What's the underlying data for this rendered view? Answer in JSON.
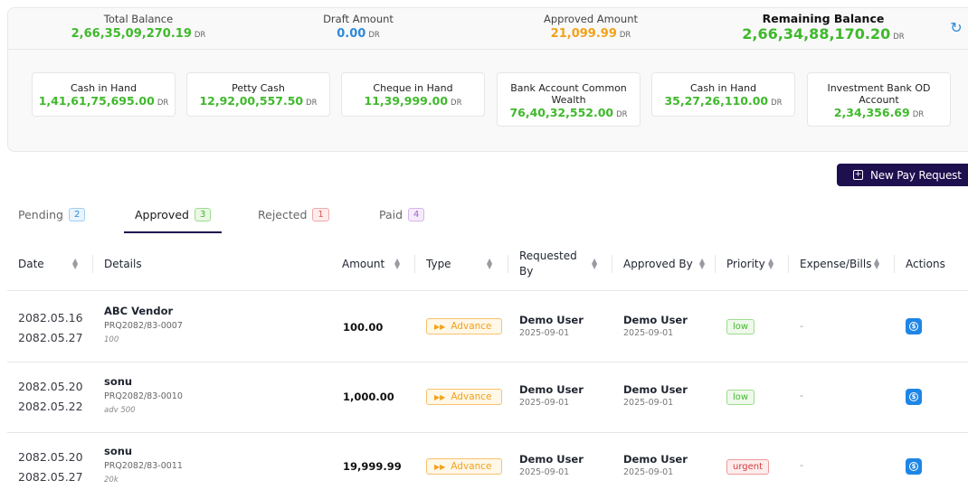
{
  "summary": {
    "total_balance": {
      "label": "Total Balance",
      "value": "2,66,35,09,270.19",
      "unit": "DR"
    },
    "draft_amount": {
      "label": "Draft Amount",
      "value": "0.00",
      "unit": "DR"
    },
    "approved_amount": {
      "label": "Approved Amount",
      "value": "21,099.99",
      "unit": "DR"
    },
    "remaining_balance": {
      "label": "Remaining Balance",
      "value": "2,66,34,88,170.20",
      "unit": "DR"
    }
  },
  "accounts": [
    {
      "label": "Cash in Hand",
      "value": "1,41,61,75,695.00",
      "unit": "DR"
    },
    {
      "label": "Petty Cash",
      "value": "12,92,00,557.50",
      "unit": "DR"
    },
    {
      "label": "Cheque in Hand",
      "value": "11,39,999.00",
      "unit": "DR"
    },
    {
      "label": "Bank Account Common Wealth",
      "value": "76,40,32,552.00",
      "unit": "DR"
    },
    {
      "label": "Cash in Hand",
      "value": "35,27,26,110.00",
      "unit": "DR"
    },
    {
      "label": "Investment Bank OD Account",
      "value": "2,34,356.69",
      "unit": "DR"
    }
  ],
  "new_button": {
    "label": "New Pay Request",
    "icon": "plus-square-icon"
  },
  "tabs": [
    {
      "label": "Pending",
      "count": "2"
    },
    {
      "label": "Approved",
      "count": "3"
    },
    {
      "label": "Rejected",
      "count": "1"
    },
    {
      "label": "Paid",
      "count": "4"
    }
  ],
  "columns": {
    "date": "Date",
    "details": "Details",
    "amount": "Amount",
    "type": "Type",
    "requested_by": "Requested By",
    "approved_by": "Approved By",
    "priority": "Priority",
    "expense": "Expense/Bills",
    "actions": "Actions"
  },
  "rows": [
    {
      "date1": "2082.05.16",
      "date2": "2082.05.27",
      "vendor": "ABC Vendor",
      "code": "PRQ2082/83-0007",
      "note": "100",
      "amount": "100.00",
      "type": "Advance",
      "requested_by": "Demo User",
      "requested_date": "2025-09-01",
      "approved_by": "Demo User",
      "approved_date": "2025-09-01",
      "priority": "low",
      "expense": "-"
    },
    {
      "date1": "2082.05.20",
      "date2": "2082.05.22",
      "vendor": "sonu",
      "code": "PRQ2082/83-0010",
      "note": "adv 500",
      "amount": "1,000.00",
      "type": "Advance",
      "requested_by": "Demo User",
      "requested_date": "2025-09-01",
      "approved_by": "Demo User",
      "approved_date": "2025-09-01",
      "priority": "low",
      "expense": "-"
    },
    {
      "date1": "2082.05.20",
      "date2": "2082.05.27",
      "vendor": "sonu",
      "code": "PRQ2082/83-0011",
      "note": "20k",
      "amount": "19,999.99",
      "type": "Advance",
      "requested_by": "Demo User",
      "requested_date": "2025-09-01",
      "approved_by": "Demo User",
      "approved_date": "2025-09-01",
      "priority": "urgent",
      "expense": "-"
    }
  ],
  "colors": {
    "accent": "#1e0f4f",
    "green": "#3fb92b",
    "blue": "#2f8ad9",
    "orange": "#f2a21a"
  }
}
